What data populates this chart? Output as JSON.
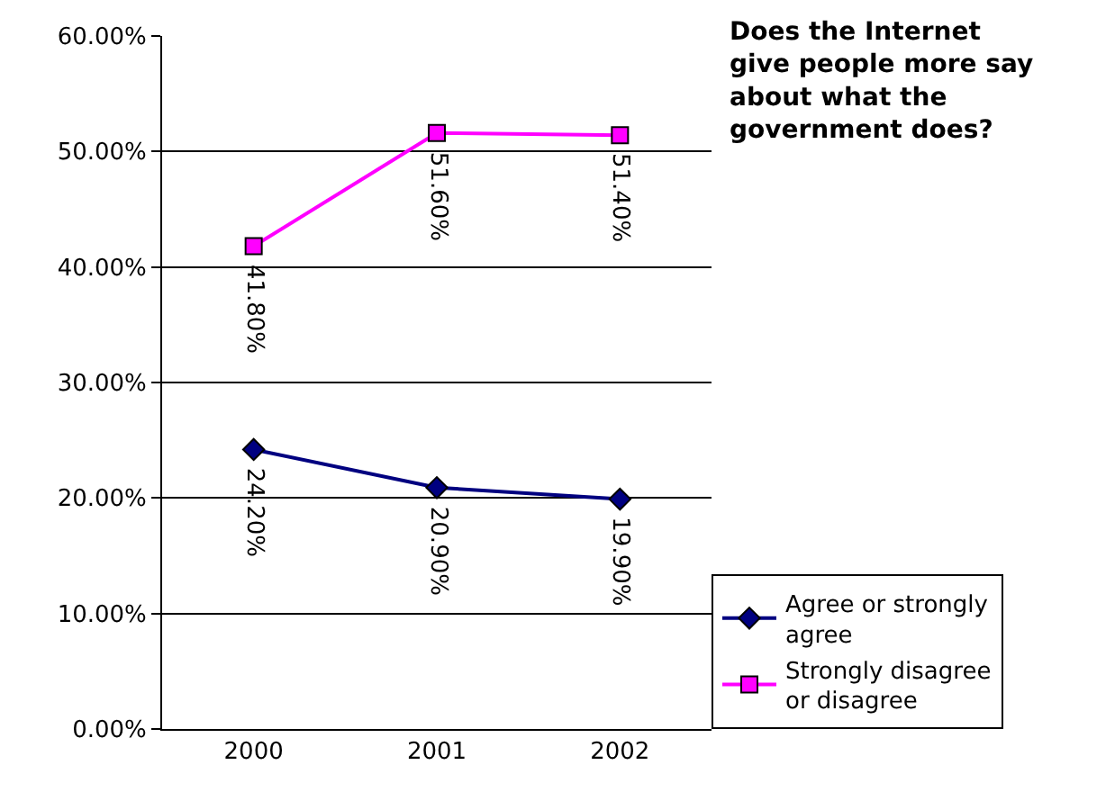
{
  "chart_data": {
    "type": "line",
    "title": "Does the Internet give people more say about what the government does?",
    "categories": [
      "2000",
      "2001",
      "2002"
    ],
    "series": [
      {
        "name": "Agree or strongly agree",
        "color": "#000080",
        "marker": "diamond",
        "values": [
          24.2,
          20.9,
          19.9
        ],
        "value_labels": [
          "24.20%",
          "20.90%",
          "19.90%"
        ]
      },
      {
        "name": "Strongly disagree or disagree",
        "color": "#ff00ff",
        "marker": "square",
        "values": [
          41.8,
          51.6,
          51.4
        ],
        "value_labels": [
          "41.80%",
          "51.60%",
          "51.40%"
        ]
      }
    ],
    "ylim": [
      0,
      60
    ],
    "yticks": [
      {
        "value": 0,
        "label": "0.00%"
      },
      {
        "value": 10,
        "label": "10.00%"
      },
      {
        "value": 20,
        "label": "20.00%"
      },
      {
        "value": 30,
        "label": "30.00%"
      },
      {
        "value": 40,
        "label": "40.00%"
      },
      {
        "value": 50,
        "label": "50.00%"
      },
      {
        "value": 60,
        "label": "60.00%"
      }
    ],
    "grid": "y",
    "legend": "bottom right",
    "line_style": "solid"
  }
}
